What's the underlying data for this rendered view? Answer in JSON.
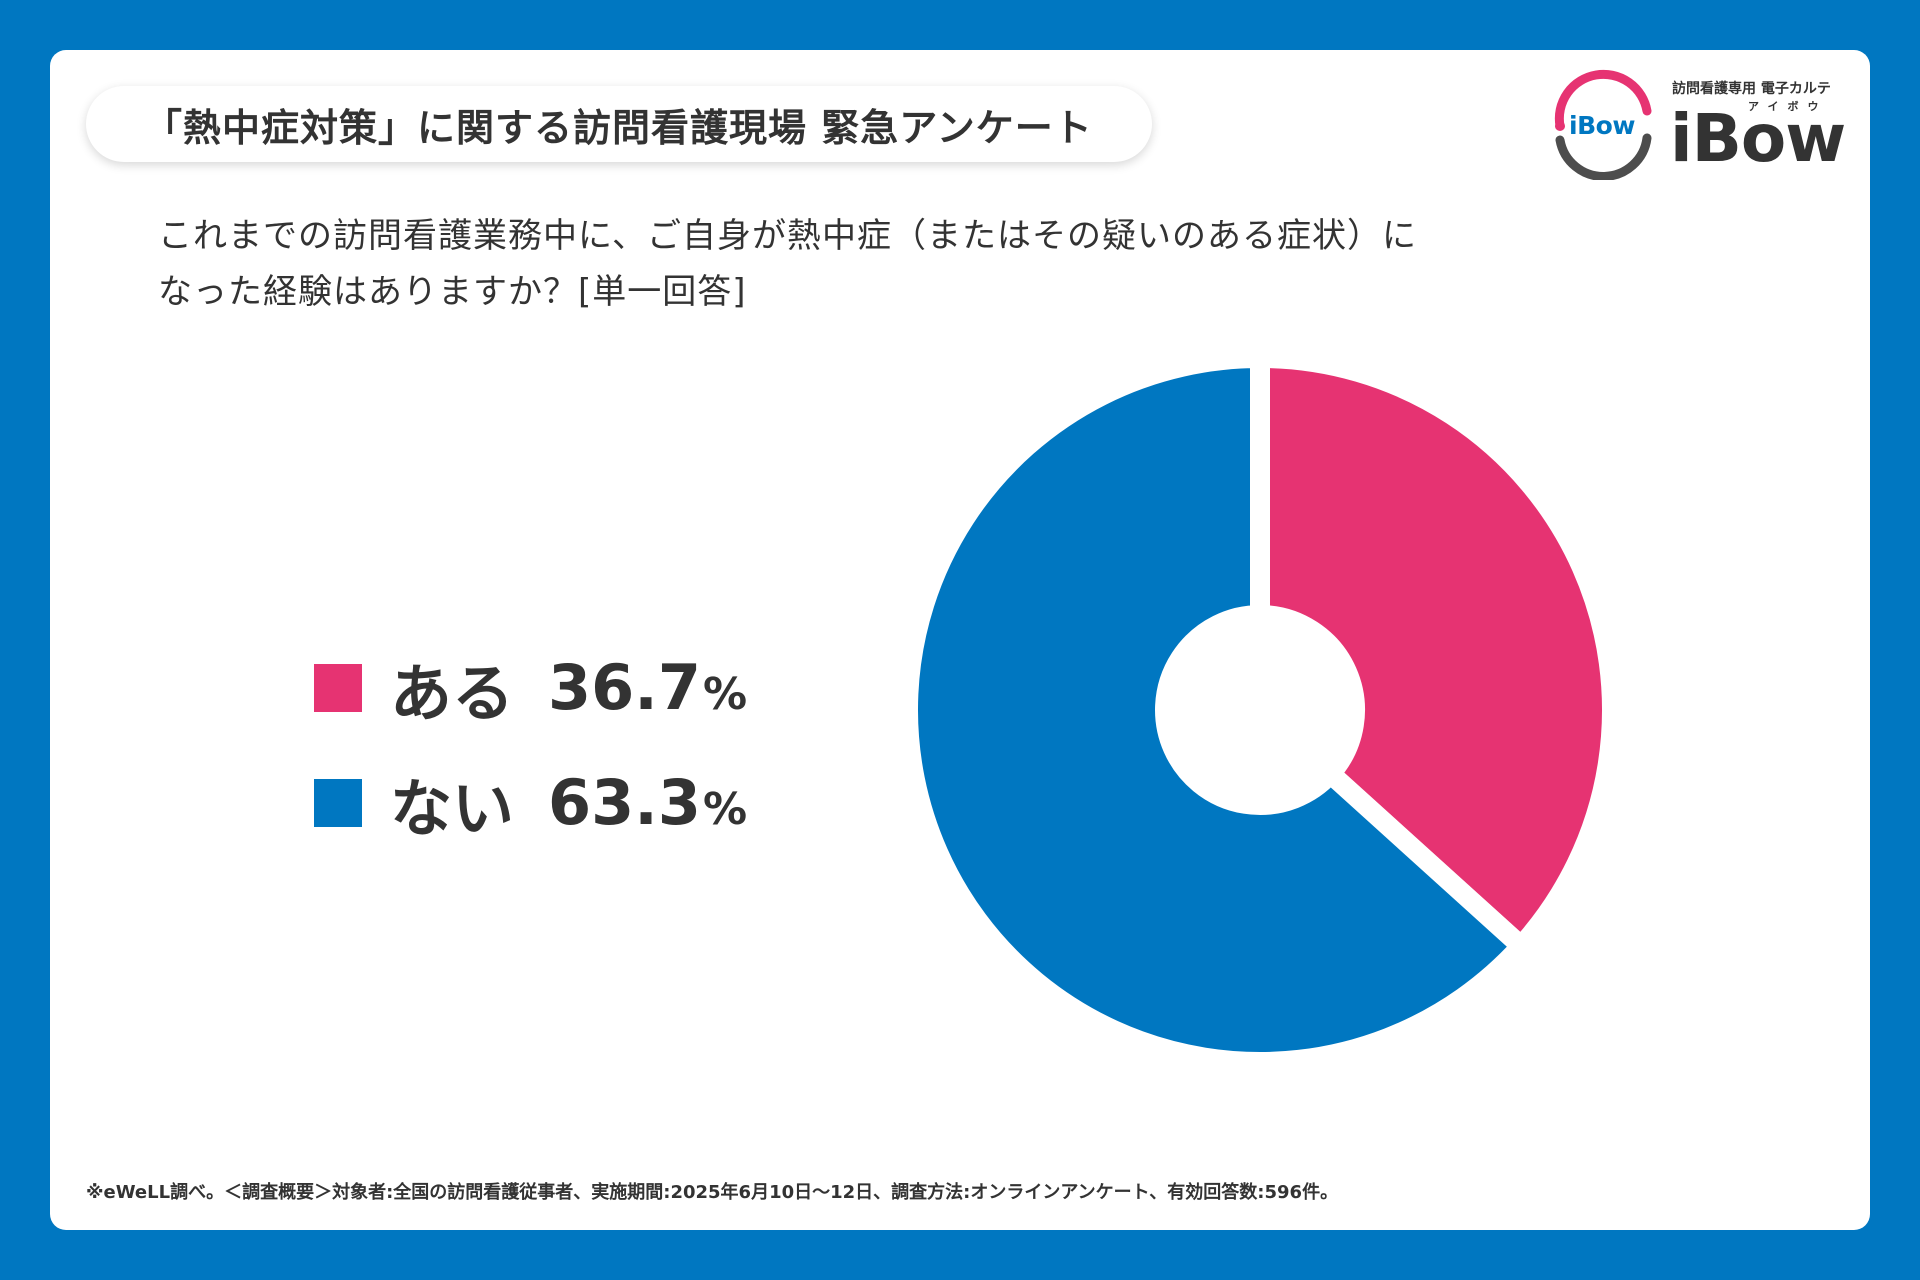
{
  "header": {
    "title": "「熱中症対策」に関する訪問看護現場 緊急アンケート"
  },
  "logo": {
    "mark_text": "iBow",
    "subtitle": "訪問看護専用 電子カルテ",
    "kana": "アイボウ",
    "name": "iBow",
    "colors": {
      "pink": "#e63372",
      "gray": "#4d4d4d",
      "blue": "#0077c1"
    }
  },
  "question": {
    "line1": "これまでの訪問看護業務中に、ご自身が熱中症（またはその疑いのある症状）に",
    "line2": "なった経験はありますか？[単一回答]"
  },
  "chart_data": {
    "type": "pie",
    "donut": true,
    "start_angle_deg": 0,
    "direction": "clockwise",
    "slices": [
      {
        "label": "ある",
        "value": 36.7,
        "value_text": "36.7",
        "unit": "%",
        "color": "#e63372"
      },
      {
        "label": "ない",
        "value": 63.3,
        "value_text": "63.3",
        "unit": "%",
        "color": "#0077c1"
      }
    ],
    "legend_placement": "left"
  },
  "footnote": "※eWeLL調べ。＜調査概要＞対象者:全国の訪問看護従事者、実施期間:2025年6月10日〜12日、調査方法:オンラインアンケート、有効回答数:596件。",
  "colors": {
    "background": "#0077c1",
    "card": "#ffffff",
    "text": "#333333"
  }
}
